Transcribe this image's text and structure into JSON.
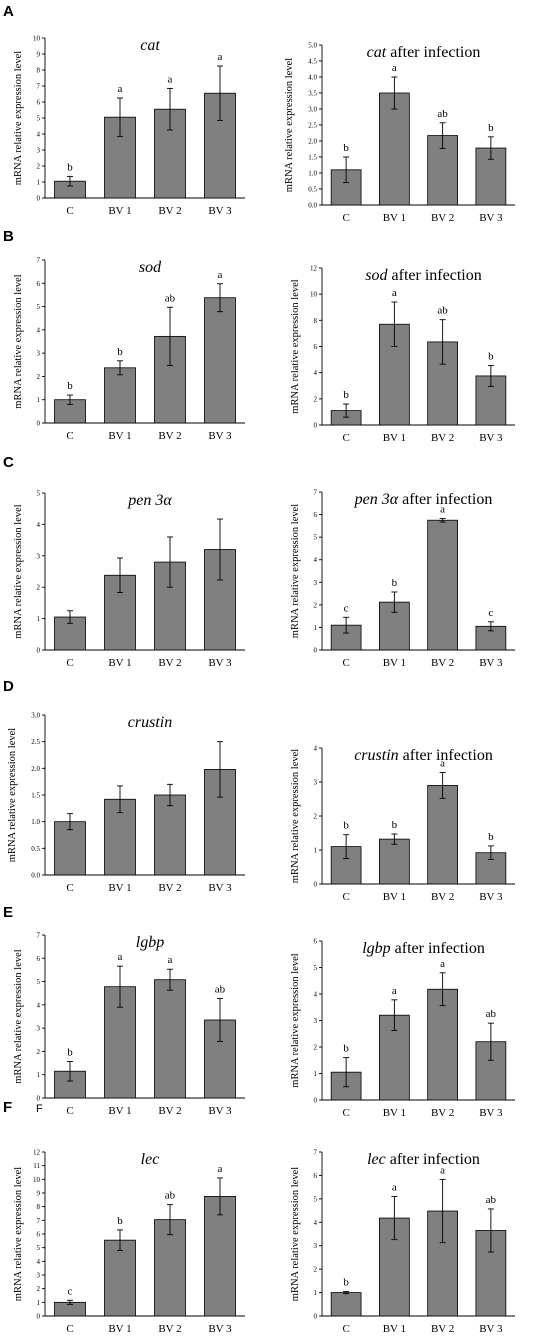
{
  "figure": {
    "panel_letters": [
      "A",
      "B",
      "C",
      "D",
      "E",
      "F"
    ],
    "extra_label": "F"
  },
  "chart_data": [
    {
      "type": "bar",
      "title_gene": "cat",
      "title_suffix": "",
      "ylabel": "mRNA relative expression level",
      "categories": [
        "C",
        "BV 1",
        "BV 2",
        "BV 3"
      ],
      "values": [
        1.05,
        5.05,
        5.55,
        6.55
      ],
      "errors": [
        0.3,
        1.2,
        1.3,
        1.7
      ],
      "sig": [
        "b",
        "a",
        "a",
        "a"
      ],
      "ylim": [
        0,
        10
      ],
      "yticks": [
        0,
        1,
        2,
        3,
        4,
        5,
        6,
        7,
        8,
        9,
        10
      ]
    },
    {
      "type": "bar",
      "title_gene": "cat",
      "title_suffix": " after infection",
      "ylabel": "mRNA relative expression level",
      "categories": [
        "C",
        "BV 1",
        "BV 2",
        "BV 3"
      ],
      "values": [
        1.1,
        3.5,
        2.17,
        1.78
      ],
      "errors": [
        0.4,
        0.5,
        0.4,
        0.35
      ],
      "sig": [
        "b",
        "a",
        "ab",
        "b"
      ],
      "ylim": [
        0,
        5
      ],
      "yticks": [
        "0.0",
        "0.5",
        "1.0",
        "1.5",
        "2.0",
        "2.5",
        "3.0",
        "3.5",
        "4.0",
        "4.5",
        "5.0"
      ]
    },
    {
      "type": "bar",
      "title_gene": "sod",
      "title_suffix": "",
      "ylabel": "mRNA relative expression level",
      "categories": [
        "C",
        "BV 1",
        "BV 2",
        "BV 3"
      ],
      "values": [
        1.0,
        2.37,
        3.72,
        5.38
      ],
      "errors": [
        0.2,
        0.3,
        1.25,
        0.6
      ],
      "sig": [
        "b",
        "b",
        "ab",
        "a"
      ],
      "ylim": [
        0,
        7
      ],
      "yticks": [
        0,
        1,
        2,
        3,
        4,
        5,
        6,
        7
      ]
    },
    {
      "type": "bar",
      "title_gene": "sod",
      "title_suffix": " after infection",
      "ylabel": "mRNA relative expression level",
      "categories": [
        "C",
        "BV 1",
        "BV 2",
        "BV 3"
      ],
      "values": [
        1.1,
        7.7,
        6.35,
        3.75
      ],
      "errors": [
        0.5,
        1.7,
        1.7,
        0.8
      ],
      "sig": [
        "b",
        "a",
        "ab",
        "b"
      ],
      "ylim": [
        0,
        12
      ],
      "yticks": [
        0,
        2,
        4,
        6,
        8,
        10,
        12
      ]
    },
    {
      "type": "bar",
      "title_gene": "pen 3α",
      "title_suffix": "",
      "ylabel": "mRNA relative expression level",
      "categories": [
        "C",
        "BV 1",
        "BV 2",
        "BV 3"
      ],
      "values": [
        1.05,
        2.38,
        2.8,
        3.2
      ],
      "errors": [
        0.2,
        0.55,
        0.8,
        0.97
      ],
      "sig": [
        "",
        "",
        "",
        ""
      ],
      "ylim": [
        0,
        5
      ],
      "yticks": [
        0,
        1,
        2,
        3,
        4,
        5
      ]
    },
    {
      "type": "bar",
      "title_gene": "pen 3α",
      "title_suffix": " after infection",
      "ylabel": "mRNA relative expression level",
      "categories": [
        "C",
        "BV 1",
        "BV 2",
        "BV 3"
      ],
      "values": [
        1.1,
        2.12,
        5.75,
        1.05
      ],
      "errors": [
        0.35,
        0.45,
        0.08,
        0.2
      ],
      "sig": [
        "c",
        "b",
        "a",
        "c"
      ],
      "ylim": [
        0,
        7
      ],
      "yticks": [
        0,
        1,
        2,
        3,
        4,
        5,
        6,
        7
      ]
    },
    {
      "type": "bar",
      "title_gene": "crustin",
      "title_suffix": "",
      "ylabel": "mRNA relative expression level",
      "categories": [
        "C",
        "BV 1",
        "BV 2",
        "BV 3"
      ],
      "values": [
        1.0,
        1.42,
        1.5,
        1.98
      ],
      "errors": [
        0.15,
        0.25,
        0.2,
        0.52
      ],
      "sig": [
        "",
        "",
        "",
        ""
      ],
      "ylim": [
        0,
        3
      ],
      "yticks": [
        "0.0",
        "0.5",
        "1.0",
        "1.5",
        "2.0",
        "2.5",
        "3.0"
      ]
    },
    {
      "type": "bar",
      "title_gene": "crustin",
      "title_suffix": " after infection",
      "ylabel": "mRNA relative expression level",
      "categories": [
        "C",
        "BV 1",
        "BV 2",
        "BV 3"
      ],
      "values": [
        1.1,
        1.32,
        2.9,
        0.92
      ],
      "errors": [
        0.35,
        0.15,
        0.38,
        0.2
      ],
      "sig": [
        "b",
        "b",
        "a",
        "b"
      ],
      "ylim": [
        0,
        4
      ],
      "yticks": [
        0,
        1,
        2,
        3,
        4
      ]
    },
    {
      "type": "bar",
      "title_gene": "lgbp",
      "title_suffix": "",
      "ylabel": "mRNA relative expression level",
      "categories": [
        "C",
        "BV 1",
        "BV 2",
        "BV 3"
      ],
      "values": [
        1.15,
        4.78,
        5.08,
        3.35
      ],
      "errors": [
        0.42,
        0.88,
        0.45,
        0.92
      ],
      "sig": [
        "b",
        "a",
        "a",
        "ab"
      ],
      "ylim": [
        0,
        7
      ],
      "yticks": [
        0,
        1,
        2,
        3,
        4,
        5,
        6,
        7
      ]
    },
    {
      "type": "bar",
      "title_gene": "lgbp",
      "title_suffix": " after infection",
      "ylabel": "mRNA relative expression level",
      "categories": [
        "C",
        "BV 1",
        "BV 2",
        "BV 3"
      ],
      "values": [
        1.05,
        3.2,
        4.18,
        2.2
      ],
      "errors": [
        0.55,
        0.58,
        0.62,
        0.7
      ],
      "sig": [
        "b",
        "a",
        "a",
        "ab"
      ],
      "ylim": [
        0,
        6
      ],
      "yticks": [
        0,
        1,
        2,
        3,
        4,
        5,
        6
      ]
    },
    {
      "type": "bar",
      "title_gene": "lec",
      "title_suffix": "",
      "ylabel": "mRNA relative expression level",
      "categories": [
        "C",
        "BV 1",
        "BV 2",
        "BV 3"
      ],
      "values": [
        1.0,
        5.55,
        7.05,
        8.75
      ],
      "errors": [
        0.15,
        0.75,
        1.1,
        1.35
      ],
      "sig": [
        "c",
        "b",
        "ab",
        "a"
      ],
      "ylim": [
        0,
        12
      ],
      "yticks": [
        0,
        1,
        2,
        3,
        4,
        5,
        6,
        7,
        8,
        9,
        10,
        11,
        12
      ]
    },
    {
      "type": "bar",
      "title_gene": "lec",
      "title_suffix": " after infection",
      "ylabel": "mRNA relative expression level",
      "categories": [
        "C",
        "BV 1",
        "BV 2",
        "BV 3"
      ],
      "values": [
        1.0,
        4.18,
        4.48,
        3.65
      ],
      "errors": [
        0.05,
        0.92,
        1.35,
        0.92
      ],
      "sig": [
        "b",
        "a",
        "a",
        "ab"
      ],
      "ylim": [
        0,
        7
      ],
      "yticks": [
        0,
        1,
        2,
        3,
        4,
        5,
        6,
        7
      ]
    }
  ]
}
